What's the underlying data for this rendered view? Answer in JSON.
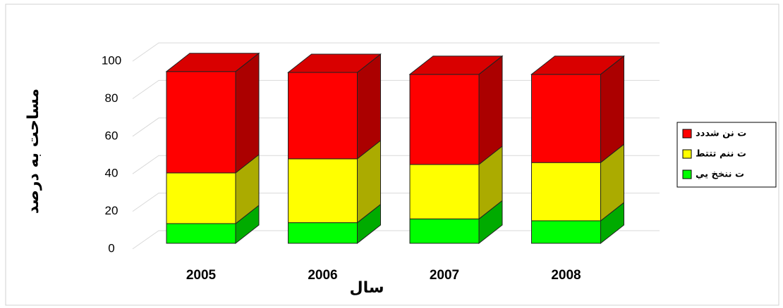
{
  "chart_data": {
    "type": "bar3d_stacked",
    "x_label": "سال",
    "y_label": "مساحت به درصد",
    "categories": [
      "2005",
      "2006",
      "2007",
      "2008"
    ],
    "series": [
      {
        "name": "ت ننخخ يي",
        "color": "#00ff00",
        "values": [
          10.5,
          11,
          13,
          12
        ]
      },
      {
        "name": "ت ننم تتتط",
        "color": "#ffff00",
        "values": [
          27,
          34,
          29,
          31
        ]
      },
      {
        "name": "ت نن شددد",
        "color": "#ff0000",
        "values": [
          54,
          46,
          48,
          47
        ]
      }
    ],
    "ylim": [
      0,
      100
    ],
    "yticks": [
      0,
      20,
      40,
      60,
      80,
      100
    ],
    "grid": true,
    "legend": "right"
  }
}
